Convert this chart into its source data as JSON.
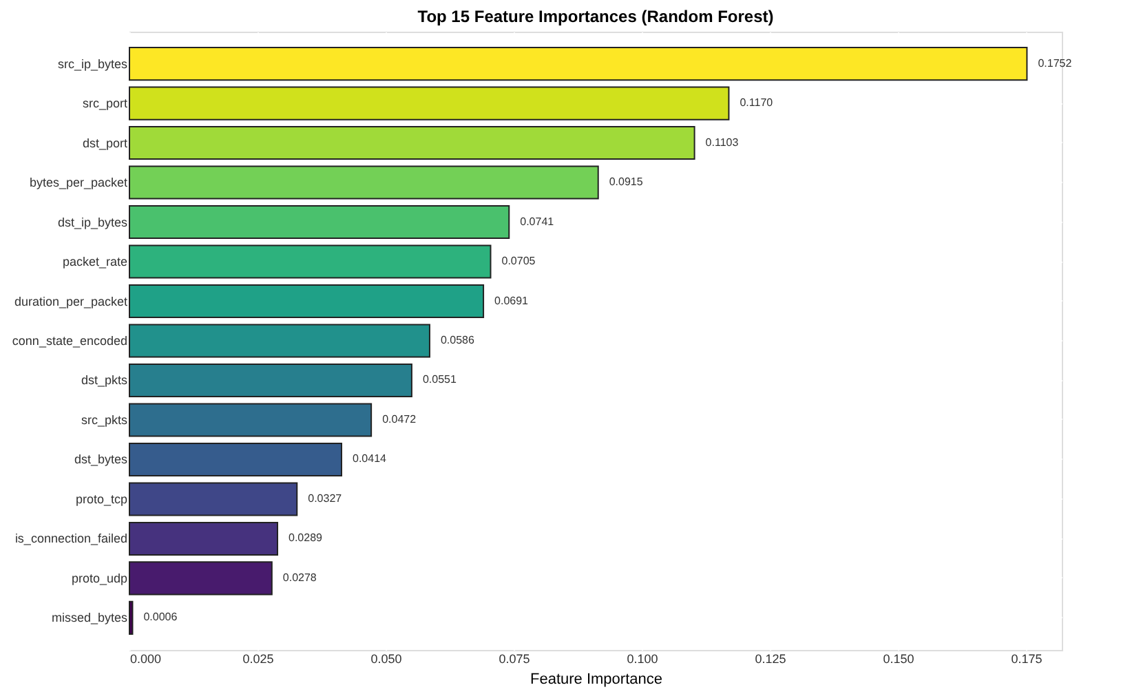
{
  "chart_data": {
    "type": "bar",
    "orientation": "horizontal",
    "title": "Top 15 Feature Importances (Random Forest)",
    "xlabel": "Feature Importance",
    "categories": [
      "src_ip_bytes",
      "src_port",
      "dst_port",
      "bytes_per_packet",
      "dst_ip_bytes",
      "packet_rate",
      "duration_per_packet",
      "conn_state_encoded",
      "dst_pkts",
      "src_pkts",
      "dst_bytes",
      "proto_tcp",
      "is_connection_failed",
      "proto_udp",
      "missed_bytes"
    ],
    "values": [
      0.1752,
      0.117,
      0.1103,
      0.0915,
      0.0741,
      0.0705,
      0.0691,
      0.0586,
      0.0551,
      0.0472,
      0.0414,
      0.0327,
      0.0289,
      0.0278,
      0.0006
    ],
    "value_labels": [
      "0.1752",
      "0.1170",
      "0.1103",
      "0.0915",
      "0.0741",
      "0.0705",
      "0.0691",
      "0.0586",
      "0.0551",
      "0.0472",
      "0.0414",
      "0.0327",
      "0.0289",
      "0.0278",
      "0.0006"
    ],
    "colors": [
      "#fde725",
      "#d0e11c",
      "#a0da39",
      "#73d056",
      "#4ac16d",
      "#2db27d",
      "#1fa187",
      "#21918c",
      "#277f8e",
      "#2e6e8e",
      "#365c8d",
      "#3f4788",
      "#46327e",
      "#481b6d",
      "#440154"
    ],
    "xlim": [
      0,
      0.182
    ],
    "xticks": [
      {
        "value": 0,
        "label": "0.000"
      },
      {
        "value": 0.025,
        "label": "0.025"
      },
      {
        "value": 0.05,
        "label": "0.050"
      },
      {
        "value": 0.075,
        "label": "0.075"
      },
      {
        "value": 0.1,
        "label": "0.100"
      },
      {
        "value": 0.125,
        "label": "0.125"
      },
      {
        "value": 0.15,
        "label": "0.150"
      },
      {
        "value": 0.175,
        "label": "0.175"
      }
    ],
    "grid": true
  }
}
